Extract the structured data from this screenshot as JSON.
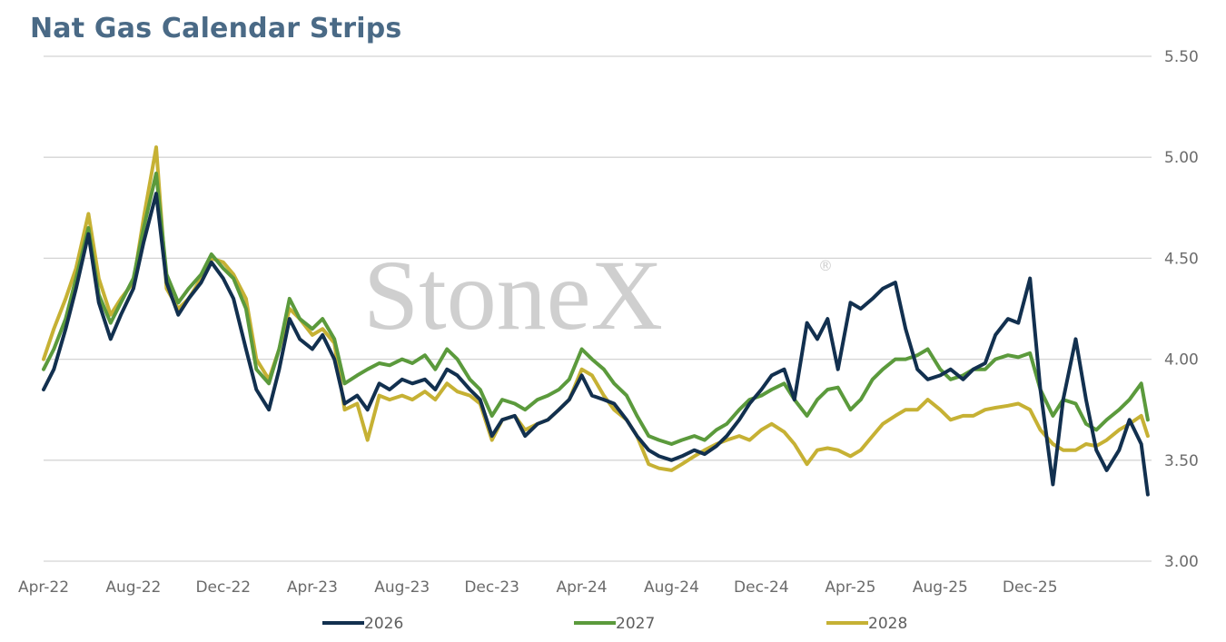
{
  "title": "Nat Gas Calendar Strips",
  "watermark": "StoneX",
  "watermark_mark": "®",
  "chart_data": {
    "type": "line",
    "title": "Nat Gas Calendar Strips",
    "xlabel": "",
    "ylabel": "",
    "ylim": [
      3.0,
      5.5
    ],
    "xlim": [
      "2022-04-01",
      "2026-05-15"
    ],
    "yticks": [
      "3.00",
      "3.50",
      "4.00",
      "4.50",
      "5.00",
      "5.50"
    ],
    "xticks": [
      {
        "date": "2022-04-01",
        "label": "Apr-22"
      },
      {
        "date": "2022-08-01",
        "label": "Aug-22"
      },
      {
        "date": "2022-12-01",
        "label": "Dec-22"
      },
      {
        "date": "2023-04-01",
        "label": "Apr-23"
      },
      {
        "date": "2023-08-01",
        "label": "Aug-23"
      },
      {
        "date": "2023-12-01",
        "label": "Dec-23"
      },
      {
        "date": "2024-04-01",
        "label": "Apr-24"
      },
      {
        "date": "2024-08-01",
        "label": "Aug-24"
      },
      {
        "date": "2024-12-01",
        "label": "Dec-24"
      },
      {
        "date": "2025-04-01",
        "label": "Apr-25"
      },
      {
        "date": "2025-08-01",
        "label": "Aug-25"
      },
      {
        "date": "2025-12-01",
        "label": "Dec-25"
      }
    ],
    "grid": true,
    "y_axis_position": "right",
    "legend_position": "bottom",
    "x": [
      "2022-04-01",
      "2022-04-15",
      "2022-05-01",
      "2022-05-15",
      "2022-06-01",
      "2022-06-15",
      "2022-07-01",
      "2022-07-15",
      "2022-08-01",
      "2022-08-15",
      "2022-09-01",
      "2022-09-15",
      "2022-10-01",
      "2022-10-15",
      "2022-11-01",
      "2022-11-15",
      "2022-12-01",
      "2022-12-15",
      "2023-01-01",
      "2023-01-15",
      "2023-02-01",
      "2023-02-15",
      "2023-03-01",
      "2023-03-15",
      "2023-04-01",
      "2023-04-15",
      "2023-05-01",
      "2023-05-15",
      "2023-06-01",
      "2023-06-15",
      "2023-07-01",
      "2023-07-15",
      "2023-08-01",
      "2023-08-15",
      "2023-09-01",
      "2023-09-15",
      "2023-10-01",
      "2023-10-15",
      "2023-11-01",
      "2023-11-15",
      "2023-12-01",
      "2023-12-15",
      "2024-01-01",
      "2024-01-15",
      "2024-02-01",
      "2024-02-15",
      "2024-03-01",
      "2024-03-15",
      "2024-04-01",
      "2024-04-15",
      "2024-05-01",
      "2024-05-15",
      "2024-06-01",
      "2024-06-15",
      "2024-07-01",
      "2024-07-15",
      "2024-08-01",
      "2024-08-15",
      "2024-09-01",
      "2024-09-15",
      "2024-10-01",
      "2024-10-15",
      "2024-11-01",
      "2024-11-15",
      "2024-12-01",
      "2024-12-15",
      "2025-01-01",
      "2025-01-15",
      "2025-02-01",
      "2025-02-15",
      "2025-03-01",
      "2025-03-15",
      "2025-04-01",
      "2025-04-15",
      "2025-05-01",
      "2025-05-15",
      "2025-06-01",
      "2025-06-15",
      "2025-07-01",
      "2025-07-15",
      "2025-08-01",
      "2025-08-15",
      "2025-09-01",
      "2025-09-15",
      "2025-10-01",
      "2025-10-15",
      "2025-11-01",
      "2025-11-15",
      "2025-12-01",
      "2025-12-15",
      "2026-01-01",
      "2026-01-15",
      "2026-02-01",
      "2026-02-15",
      "2026-03-01",
      "2026-03-15",
      "2026-04-01",
      "2026-04-15",
      "2026-05-01",
      "2026-05-10"
    ],
    "series": [
      {
        "name": "2026",
        "color": "#12304f",
        "values": [
          3.85,
          3.95,
          4.15,
          4.35,
          4.62,
          4.28,
          4.1,
          4.22,
          4.35,
          4.58,
          4.82,
          4.38,
          4.22,
          4.3,
          4.38,
          4.48,
          4.4,
          4.3,
          4.05,
          3.85,
          3.75,
          3.95,
          4.2,
          4.1,
          4.05,
          4.12,
          4.0,
          3.78,
          3.82,
          3.75,
          3.88,
          3.85,
          3.9,
          3.88,
          3.9,
          3.85,
          3.95,
          3.92,
          3.85,
          3.8,
          3.62,
          3.7,
          3.72,
          3.62,
          3.68,
          3.7,
          3.75,
          3.8,
          3.92,
          3.82,
          3.8,
          3.78,
          3.7,
          3.62,
          3.55,
          3.52,
          3.5,
          3.52,
          3.55,
          3.53,
          3.57,
          3.62,
          3.7,
          3.78,
          3.85,
          3.92,
          3.95,
          3.8,
          4.18,
          4.1,
          4.2,
          3.95,
          4.28,
          4.25,
          4.3,
          4.35,
          4.38,
          4.15,
          3.95,
          3.9,
          3.92,
          3.95,
          3.9,
          3.95,
          3.98,
          4.12,
          4.2,
          4.18,
          4.4,
          3.85,
          3.38,
          3.8,
          4.1,
          3.8,
          3.55,
          3.45,
          3.55,
          3.7,
          3.58,
          3.33
        ]
      },
      {
        "name": "2027",
        "color": "#5b9a3c",
        "values": [
          3.95,
          4.05,
          4.2,
          4.4,
          4.65,
          4.32,
          4.18,
          4.28,
          4.4,
          4.65,
          4.92,
          4.42,
          4.28,
          4.35,
          4.42,
          4.52,
          4.45,
          4.4,
          4.25,
          3.95,
          3.88,
          4.05,
          4.3,
          4.2,
          4.15,
          4.2,
          4.1,
          3.88,
          3.92,
          3.95,
          3.98,
          3.97,
          4.0,
          3.98,
          4.02,
          3.95,
          4.05,
          4.0,
          3.9,
          3.85,
          3.72,
          3.8,
          3.78,
          3.75,
          3.8,
          3.82,
          3.85,
          3.9,
          4.05,
          4.0,
          3.95,
          3.88,
          3.82,
          3.72,
          3.62,
          3.6,
          3.58,
          3.6,
          3.62,
          3.6,
          3.65,
          3.68,
          3.75,
          3.8,
          3.82,
          3.85,
          3.88,
          3.8,
          3.72,
          3.8,
          3.85,
          3.86,
          3.75,
          3.8,
          3.9,
          3.95,
          4.0,
          4.0,
          4.02,
          4.05,
          3.95,
          3.9,
          3.92,
          3.95,
          3.95,
          4.0,
          4.02,
          4.01,
          4.03,
          3.85,
          3.72,
          3.8,
          3.78,
          3.68,
          3.65,
          3.7,
          3.75,
          3.8,
          3.88,
          3.7
        ]
      },
      {
        "name": "2028",
        "color": "#c6b134",
        "values": [
          4.0,
          4.15,
          4.3,
          4.45,
          4.72,
          4.4,
          4.22,
          4.3,
          4.38,
          4.7,
          5.05,
          4.35,
          4.25,
          4.3,
          4.4,
          4.5,
          4.48,
          4.42,
          4.3,
          4.0,
          3.9,
          4.05,
          4.25,
          4.2,
          4.12,
          4.15,
          4.08,
          3.75,
          3.78,
          3.6,
          3.82,
          3.8,
          3.82,
          3.8,
          3.84,
          3.8,
          3.88,
          3.84,
          3.82,
          3.78,
          3.6,
          3.7,
          3.72,
          3.65,
          3.68,
          3.7,
          3.75,
          3.8,
          3.95,
          3.92,
          3.82,
          3.75,
          3.7,
          3.62,
          3.48,
          3.46,
          3.45,
          3.48,
          3.52,
          3.55,
          3.58,
          3.6,
          3.62,
          3.6,
          3.65,
          3.68,
          3.64,
          3.58,
          3.48,
          3.55,
          3.56,
          3.55,
          3.52,
          3.55,
          3.62,
          3.68,
          3.72,
          3.75,
          3.75,
          3.8,
          3.75,
          3.7,
          3.72,
          3.72,
          3.75,
          3.76,
          3.77,
          3.78,
          3.75,
          3.65,
          3.58,
          3.55,
          3.55,
          3.58,
          3.57,
          3.6,
          3.65,
          3.68,
          3.72,
          3.62
        ]
      }
    ]
  }
}
